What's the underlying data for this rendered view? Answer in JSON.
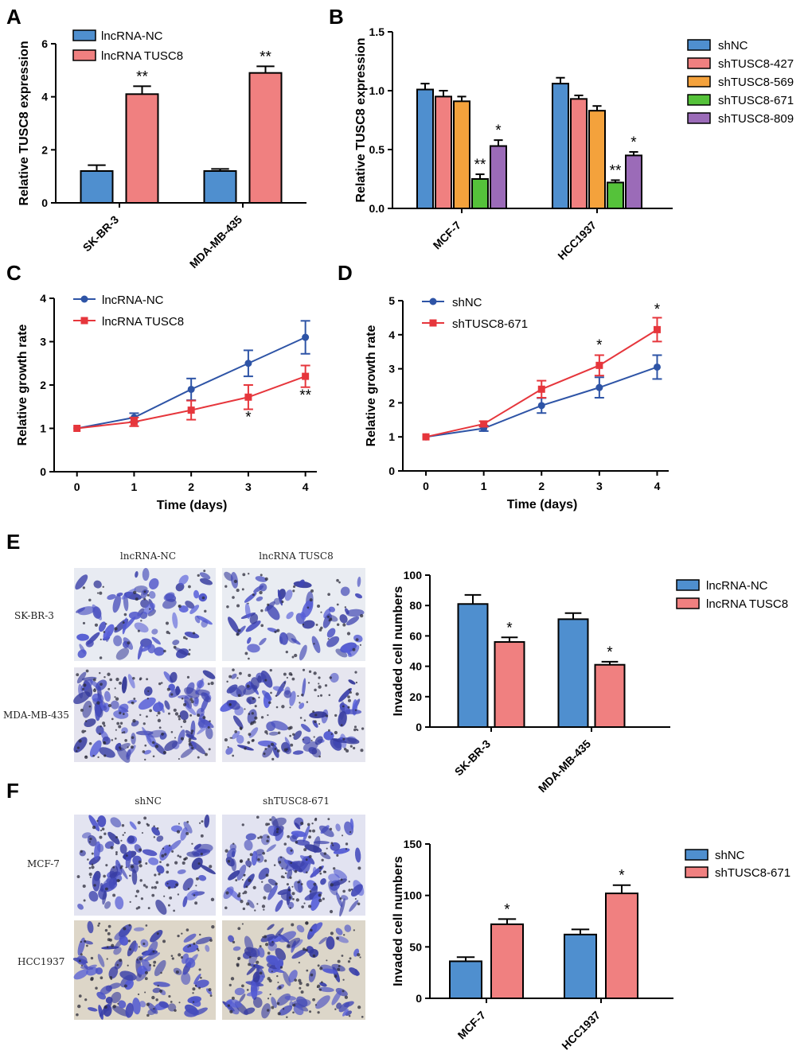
{
  "panel_labels": [
    "A",
    "B",
    "C",
    "D",
    "E",
    "F"
  ],
  "colors": {
    "blue": "#4f8fcf",
    "salmon": "#f08080",
    "orange": "#f4a23c",
    "green": "#55c23a",
    "purple": "#9b6bb8",
    "line_blue": "#2e54a6",
    "line_red": "#e6363c"
  },
  "chart_data": [
    {
      "id": "A",
      "type": "bar",
      "ylabel": "Relative TUSC8 expression",
      "xlabel": "",
      "ylim": [
        0,
        6
      ],
      "yticks": [
        0,
        2,
        4,
        6
      ],
      "categories": [
        "SK-BR-3",
        "MDA-MB-435"
      ],
      "series": [
        {
          "name": "lncRNA-NC",
          "color": "blue",
          "values": [
            1.2,
            1.2
          ],
          "errors": [
            0.22,
            0.08
          ],
          "sig": [
            "",
            ""
          ]
        },
        {
          "name": "lncRNA TUSC8",
          "color": "salmon",
          "values": [
            4.1,
            4.9
          ],
          "errors": [
            0.3,
            0.25
          ],
          "sig": [
            "**",
            "**"
          ]
        }
      ],
      "legend": "top-left"
    },
    {
      "id": "B",
      "type": "bar",
      "ylabel": "Relative TUSC8 expression",
      "xlabel": "",
      "ylim": [
        0,
        1.5
      ],
      "yticks": [
        0.0,
        0.5,
        1.0,
        1.5
      ],
      "tick_decimals": 1,
      "categories": [
        "MCF-7",
        "HCC1937"
      ],
      "series": [
        {
          "name": "shNC",
          "color": "blue",
          "values": [
            1.01,
            1.06
          ],
          "errors": [
            0.05,
            0.05
          ],
          "sig": [
            "",
            ""
          ]
        },
        {
          "name": "shTUSC8-427",
          "color": "salmon",
          "values": [
            0.95,
            0.93
          ],
          "errors": [
            0.05,
            0.03
          ],
          "sig": [
            "",
            ""
          ]
        },
        {
          "name": "shTUSC8-569",
          "color": "orange",
          "values": [
            0.91,
            0.83
          ],
          "errors": [
            0.04,
            0.04
          ],
          "sig": [
            "",
            ""
          ]
        },
        {
          "name": "shTUSC8-671",
          "color": "green",
          "values": [
            0.25,
            0.22
          ],
          "errors": [
            0.04,
            0.02
          ],
          "sig": [
            "**",
            "**"
          ]
        },
        {
          "name": "shTUSC8-809",
          "color": "purple",
          "values": [
            0.53,
            0.45
          ],
          "errors": [
            0.05,
            0.03
          ],
          "sig": [
            "*",
            "*"
          ]
        }
      ],
      "legend": "right"
    },
    {
      "id": "C",
      "type": "line",
      "ylabel": "Relative growth rate",
      "xlabel": "Time (days)",
      "xlim": [
        -0.4,
        4.2
      ],
      "xticks": [
        0,
        1,
        2,
        3,
        4
      ],
      "ylim": [
        0,
        4
      ],
      "yticks": [
        0,
        1,
        2,
        3,
        4
      ],
      "series": [
        {
          "name": "lncRNA-NC",
          "color": "line_blue",
          "marker": "circle",
          "x": [
            0,
            1,
            2,
            3,
            4
          ],
          "y": [
            1.0,
            1.25,
            1.9,
            2.5,
            3.1
          ],
          "errors": [
            0,
            0.1,
            0.25,
            0.3,
            0.38
          ]
        },
        {
          "name": "lncRNA TUSC8",
          "color": "line_red",
          "marker": "square",
          "x": [
            0,
            1,
            2,
            3,
            4
          ],
          "y": [
            1.0,
            1.15,
            1.42,
            1.72,
            2.2
          ],
          "errors": [
            0,
            0.1,
            0.22,
            0.28,
            0.25
          ]
        }
      ],
      "annotations": [
        {
          "text": "*",
          "x": 3,
          "y": 1.15
        },
        {
          "text": "**",
          "x": 4,
          "y": 1.65
        }
      ],
      "legend": "top-left"
    },
    {
      "id": "D",
      "type": "line",
      "ylabel": "Relative growth rate",
      "xlabel": "Time (days)",
      "xlim": [
        -0.4,
        4.2
      ],
      "xticks": [
        0,
        1,
        2,
        3,
        4
      ],
      "ylim": [
        0,
        5
      ],
      "yticks": [
        0,
        1,
        2,
        3,
        4,
        5
      ],
      "series": [
        {
          "name": "shNC",
          "color": "line_blue",
          "marker": "circle",
          "x": [
            0,
            1,
            2,
            3,
            4
          ],
          "y": [
            1.0,
            1.25,
            1.92,
            2.45,
            3.05
          ],
          "errors": [
            0,
            0.08,
            0.22,
            0.3,
            0.35
          ]
        },
        {
          "name": "shTUSC8-671",
          "color": "line_red",
          "marker": "square",
          "x": [
            0,
            1,
            2,
            3,
            4
          ],
          "y": [
            1.0,
            1.38,
            2.4,
            3.1,
            4.15
          ],
          "errors": [
            0,
            0.08,
            0.25,
            0.3,
            0.35
          ]
        }
      ],
      "annotations": [
        {
          "text": "*",
          "x": 3,
          "y": 3.55
        },
        {
          "text": "*",
          "x": 4,
          "y": 4.6
        }
      ],
      "legend": "top-left"
    },
    {
      "id": "E",
      "type": "bar",
      "ylabel": "Invaded cell numbers",
      "xlabel": "",
      "ylim": [
        0,
        100
      ],
      "yticks": [
        0,
        20,
        40,
        60,
        80,
        100
      ],
      "categories": [
        "SK-BR-3",
        "MDA-MB-435"
      ],
      "series": [
        {
          "name": "lncRNA-NC",
          "color": "blue",
          "values": [
            81,
            71
          ],
          "errors": [
            6,
            4
          ],
          "sig": [
            "",
            ""
          ]
        },
        {
          "name": "lncRNA TUSC8",
          "color": "salmon",
          "values": [
            56,
            41
          ],
          "errors": [
            3,
            2
          ],
          "sig": [
            "*",
            "*"
          ]
        }
      ],
      "legend": "right"
    },
    {
      "id": "F",
      "type": "bar",
      "ylabel": "Invaded cell numbers",
      "xlabel": "",
      "ylim": [
        0,
        150
      ],
      "yticks": [
        0,
        50,
        100,
        150
      ],
      "categories": [
        "MCF-7",
        "HCC1937"
      ],
      "series": [
        {
          "name": "shNC",
          "color": "blue",
          "values": [
            36,
            62
          ],
          "errors": [
            4,
            5
          ],
          "sig": [
            "",
            ""
          ]
        },
        {
          "name": "shTUSC8-671",
          "color": "salmon",
          "values": [
            72,
            102
          ],
          "errors": [
            5,
            8
          ],
          "sig": [
            "*",
            "*"
          ]
        }
      ],
      "legend": "right"
    }
  ],
  "micrographs": {
    "E": {
      "columns": [
        "lncRNA-NC",
        "lncRNA TUSC8"
      ],
      "rows": [
        "SK-BR-3",
        "MDA-MB-435"
      ]
    },
    "F": {
      "columns": [
        "shNC",
        "shTUSC8-671"
      ],
      "rows": [
        "MCF-7",
        "HCC1937"
      ]
    }
  }
}
